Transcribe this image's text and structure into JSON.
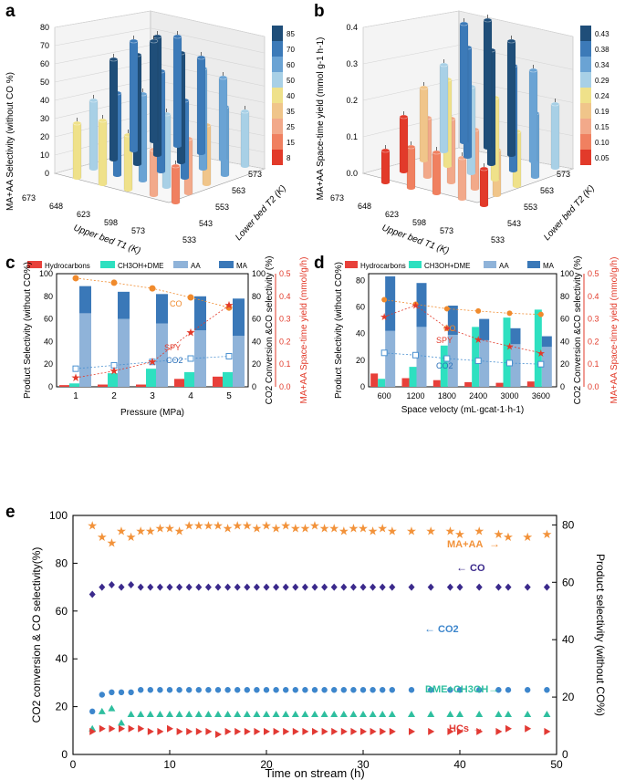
{
  "colors": {
    "hc": "#e8403a",
    "dme": "#2ee0c0",
    "aa": "#8fb3d9",
    "ma": "#3a78b8",
    "co": "#f08a2c",
    "co2": "#4a90d0",
    "spy": "#e23a2a",
    "e_ma_aa": "#f2923a",
    "e_co": "#3b2a8c",
    "e_co2": "#3d86cc",
    "e_dme": "#2fbf9f",
    "e_hcs": "#e23a34"
  },
  "panel_a": {
    "label": "a",
    "zlabel": "MA+AA Selectivity (without CO %)",
    "xlabel": "Upper bed T1 (K)",
    "ylabel": "Lower bed T2 (K)",
    "zticks": [
      "0",
      "10",
      "20",
      "30",
      "40",
      "50",
      "60",
      "70",
      "80"
    ],
    "xticks": [
      "673",
      "648",
      "623",
      "598",
      "573"
    ],
    "yticks": [
      "533",
      "543",
      "553",
      "563",
      "573"
    ],
    "colorbar": [
      "85",
      "70",
      "60",
      "50",
      "40",
      "35",
      "25",
      "15",
      "8"
    ]
  },
  "panel_b": {
    "label": "b",
    "zlabel": "MA+AA Space-time yield (mmol g-1 h-1)",
    "xlabel": "Upper bed T1 (K)",
    "ylabel": "Lower bed T2 (K)",
    "zticks": [
      "0.0",
      "0.1",
      "0.2",
      "0.3",
      "0.4"
    ],
    "xticks": [
      "673",
      "648",
      "623",
      "598",
      "573"
    ],
    "yticks": [
      "533",
      "543",
      "553",
      "563",
      "573"
    ],
    "colorbar": [
      "0.43",
      "0.38",
      "0.34",
      "0.29",
      "0.24",
      "0.19",
      "0.15",
      "0.10",
      "0.05"
    ]
  },
  "chart_data": [
    {
      "panel": "c",
      "type": "bar",
      "xlabel": "Pressure (MPa)",
      "ylabel": "Product Selectivity (without CO%)",
      "ylabel2": "CO2 Conversion &CO selectivity (%)",
      "ylabel3": "MA+AA Space-time yield (mmol/g/h)",
      "categories": [
        "1",
        "2",
        "3",
        "4",
        "5"
      ],
      "ylim": [
        0,
        100
      ],
      "y2lim": [
        0,
        100
      ],
      "y3lim": [
        0,
        0.5
      ],
      "yticks": [
        "0",
        "20",
        "40",
        "60",
        "80",
        "100"
      ],
      "y3ticks": [
        "0.0",
        "0.1",
        "0.2",
        "0.3",
        "0.4",
        "0.5"
      ],
      "legend": [
        "Hydrocarbons",
        "CH3OH+DME",
        "AA",
        "MA"
      ],
      "series": [
        {
          "name": "Hydrocarbons",
          "values": [
            1.5,
            2,
            2,
            7,
            9
          ]
        },
        {
          "name": "CH3OH+DME",
          "values": [
            3,
            12,
            16,
            13,
            13
          ]
        },
        {
          "name": "AA",
          "values": [
            65,
            60,
            56,
            50,
            45
          ]
        },
        {
          "name": "MA",
          "values": [
            24,
            24,
            26,
            30,
            33
          ]
        }
      ],
      "co": [
        96,
        92,
        87,
        79,
        70
      ],
      "co2": [
        16,
        19,
        22,
        25,
        27
      ],
      "spy": [
        0.04,
        0.07,
        0.11,
        0.24,
        0.36
      ],
      "annotations": {
        "co": "CO",
        "co2": "CO2",
        "spy": "SPY"
      }
    },
    {
      "panel": "d",
      "type": "bar",
      "xlabel": "Space velocty (mL·gcat-1·h-1)",
      "ylabel": "Product Selectivity (without CO%)",
      "ylabel2": "CO2 Conversion &CO selectivity (%)",
      "ylabel3": "MA+AA Space-time yield (mmol/g/h)",
      "categories": [
        "600",
        "1200",
        "1800",
        "2400",
        "3000",
        "3600"
      ],
      "ylim": [
        0,
        85
      ],
      "y2lim": [
        0,
        100
      ],
      "y3lim": [
        0,
        0.5
      ],
      "yticks": [
        "0",
        "20",
        "40",
        "60",
        "80"
      ],
      "y2ticks": [
        "0",
        "20",
        "40",
        "60",
        "80",
        "100"
      ],
      "y3ticks": [
        "0.0",
        "0.1",
        "0.2",
        "0.3",
        "0.4",
        "0.5"
      ],
      "legend": [
        "Hydrocarbons",
        "CH3OH+DME",
        "AA",
        "MA"
      ],
      "bars_left": [
        {
          "name": "Hydrocarbons",
          "values": [
            10,
            6.5,
            5,
            3.5,
            3,
            4
          ]
        },
        {
          "name": "CH3OH+DME",
          "values": [
            6,
            15,
            31,
            45,
            52,
            58
          ]
        }
      ],
      "bars_right": [
        {
          "name": "AA",
          "values": [
            42,
            45,
            39,
            35,
            32,
            30
          ]
        },
        {
          "name": "MA",
          "values": [
            41,
            33,
            22,
            16,
            12,
            8
          ]
        }
      ],
      "co": [
        77,
        73,
        69,
        67,
        65,
        64
      ],
      "co2": [
        30,
        28,
        25,
        23,
        21,
        20
      ],
      "spy": [
        0.31,
        0.36,
        0.26,
        0.21,
        0.18,
        0.15
      ],
      "annotations": {
        "co": "CO",
        "co2": "CO2",
        "spy": "SPY"
      }
    },
    {
      "panel": "e",
      "type": "scatter",
      "xlabel": "Time on stream (h)",
      "ylabel": "CO2 conversion & CO selectivity(%)",
      "ylabel2": "Product selectivity (without CO%)",
      "xlim": [
        0,
        50
      ],
      "ylim": [
        0,
        100
      ],
      "y2lim": [
        0,
        83.3
      ],
      "xticks": [
        "0",
        "10",
        "20",
        "30",
        "40",
        "50"
      ],
      "yticks": [
        "0",
        "20",
        "40",
        "60",
        "80",
        "100"
      ],
      "y2ticks": [
        "0",
        "20",
        "40",
        "60",
        "80"
      ],
      "x": [
        2,
        3,
        4,
        5,
        6,
        7,
        8,
        9,
        10,
        11,
        12,
        13,
        14,
        15,
        16,
        17,
        18,
        19,
        20,
        21,
        22,
        23,
        24,
        25,
        26,
        27,
        28,
        29,
        30,
        31,
        32,
        33,
        35,
        37,
        39,
        40,
        42,
        44,
        45,
        47,
        49
      ],
      "series": [
        {
          "name": "MA+AA",
          "axis": "right",
          "values": [
            80,
            76,
            74,
            78,
            76,
            78,
            78,
            79,
            79,
            78,
            80,
            80,
            80,
            80,
            79,
            80,
            80,
            79,
            80,
            79,
            80,
            79,
            79,
            80,
            79,
            79,
            78,
            79,
            79,
            78,
            79,
            78,
            78,
            78,
            78,
            77,
            78,
            77,
            76,
            76,
            77
          ]
        },
        {
          "name": "CO",
          "axis": "left",
          "values": [
            67,
            70,
            71,
            70,
            71,
            70,
            70,
            70,
            70,
            70,
            70,
            70,
            70,
            70,
            70,
            70,
            70,
            70,
            70,
            70,
            70,
            70,
            70,
            70,
            70,
            70,
            70,
            70,
            70,
            70,
            70,
            70,
            70,
            70,
            70,
            70,
            70,
            70,
            70,
            70,
            70
          ]
        },
        {
          "name": "CO2",
          "axis": "left",
          "values": [
            18,
            25,
            26,
            26,
            26,
            27,
            27,
            27,
            27,
            27,
            27,
            27,
            27,
            27,
            27,
            27,
            27,
            27,
            27,
            27,
            27,
            27,
            27,
            27,
            27,
            27,
            27,
            27,
            27,
            27,
            27,
            27,
            27,
            27,
            27,
            27,
            27,
            27,
            27,
            27,
            27
          ]
        },
        {
          "name": "DME+CH3OH",
          "axis": "right",
          "values": [
            9,
            15,
            16,
            11,
            14,
            14,
            14,
            14,
            14,
            14,
            14,
            14,
            14,
            14,
            14,
            14,
            14,
            14,
            14,
            14,
            14,
            14,
            14,
            14,
            14,
            14,
            14,
            14,
            14,
            14,
            14,
            14,
            14,
            14,
            14,
            14,
            14,
            14,
            14,
            14,
            14
          ]
        },
        {
          "name": "HCs",
          "axis": "right",
          "values": [
            8,
            9,
            9,
            9,
            9,
            9,
            8,
            8,
            9,
            8,
            8,
            8,
            8,
            7,
            8,
            8,
            8,
            8,
            8,
            8,
            8,
            8,
            8,
            8,
            8,
            8,
            8,
            8,
            8,
            8,
            8,
            8,
            8,
            8,
            8,
            8,
            8,
            8,
            9,
            9,
            8
          ]
        }
      ],
      "annotations": [
        "MA+AA",
        "CO",
        "CO2",
        "DME+CH3OH",
        "HCs"
      ]
    }
  ]
}
